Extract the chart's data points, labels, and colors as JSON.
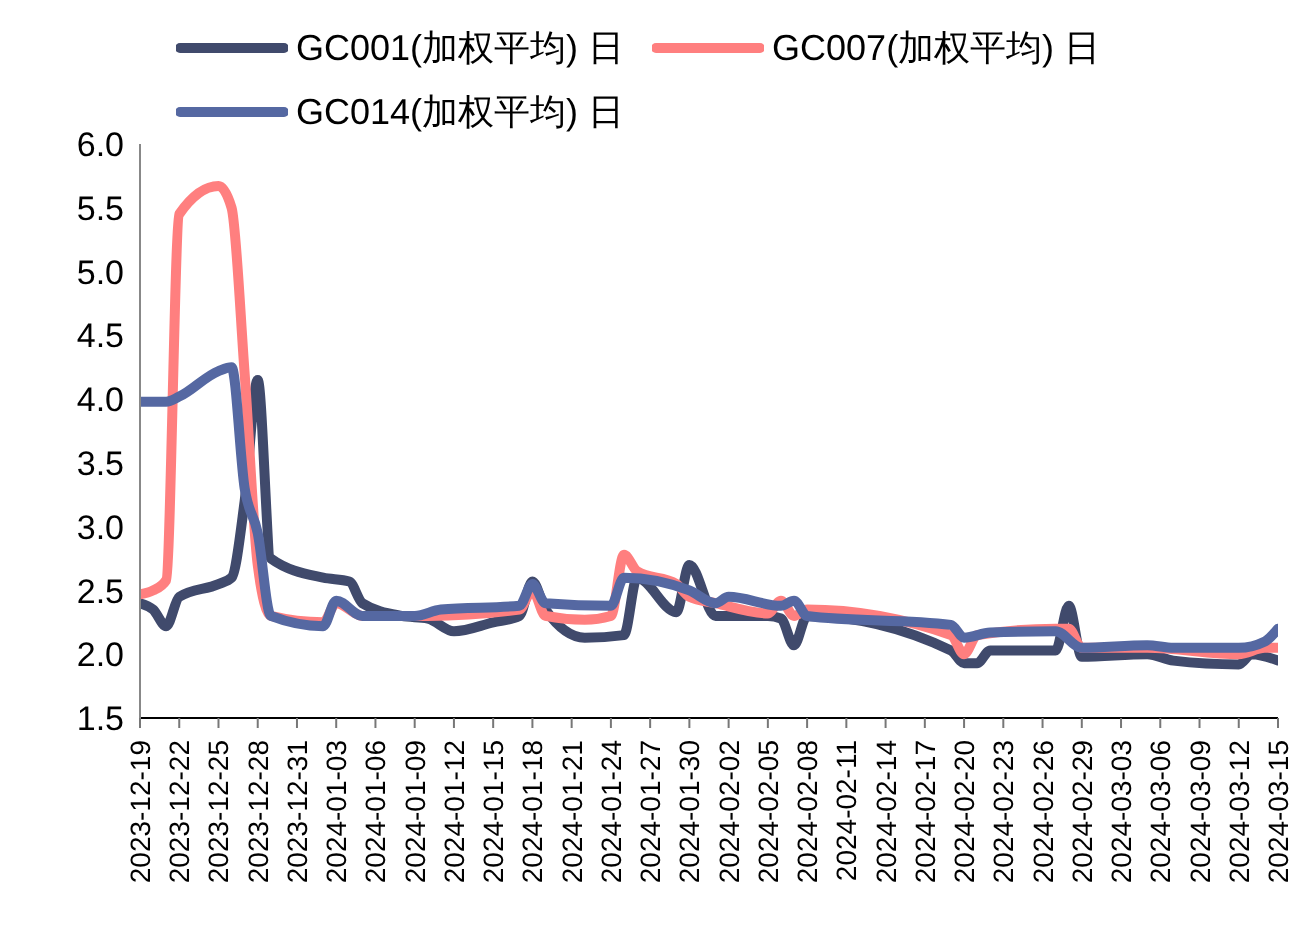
{
  "chart_data": {
    "type": "line",
    "legend": "top",
    "grid": false,
    "marker": "none",
    "line_style": "solid",
    "xlim": [
      "2023-12-19",
      "2024-03-15"
    ],
    "xticks": [
      "2023-12-19",
      "2023-12-22",
      "2023-12-25",
      "2023-12-28",
      "2023-12-31",
      "2024-01-03",
      "2024-01-06",
      "2024-01-09",
      "2024-01-12",
      "2024-01-15",
      "2024-01-18",
      "2024-01-21",
      "2024-01-24",
      "2024-01-27",
      "2024-01-30",
      "2024-02-02",
      "2024-02-05",
      "2024-02-08",
      "2024-02-11",
      "2024-02-14",
      "2024-02-17",
      "2024-02-20",
      "2024-02-23",
      "2024-02-26",
      "2024-02-29",
      "2024-03-03",
      "2024-03-06",
      "2024-03-09",
      "2024-03-12",
      "2024-03-15"
    ],
    "ylim": [
      1.5,
      6.0
    ],
    "yticks": [
      {
        "value": 1.5,
        "label": "1.5"
      },
      {
        "value": 2,
        "label": "2.0"
      },
      {
        "value": 2.5,
        "label": "2.5"
      },
      {
        "value": 3,
        "label": "3.0"
      },
      {
        "value": 3.5,
        "label": "3.5"
      },
      {
        "value": 4,
        "label": "4.0"
      },
      {
        "value": 4.5,
        "label": "4.5"
      },
      {
        "value": 5,
        "label": "5.0"
      },
      {
        "value": 5.5,
        "label": "5.5"
      },
      {
        "value": 6,
        "label": "6.0"
      }
    ],
    "series": [
      {
        "name": "GC001(加权平均) 日",
        "color": "#404a6c",
        "x": [
          "2023-12-19",
          "2023-12-20",
          "2023-12-21",
          "2023-12-22",
          "2023-12-25",
          "2023-12-26",
          "2023-12-27",
          "2023-12-28",
          "2023-12-29",
          "2024-01-02",
          "2024-01-04",
          "2024-01-05",
          "2024-01-08",
          "2024-01-10",
          "2024-01-12",
          "2024-01-15",
          "2024-01-17",
          "2024-01-18",
          "2024-01-19",
          "2024-01-22",
          "2024-01-25",
          "2024-01-26",
          "2024-01-29",
          "2024-01-30",
          "2024-02-01",
          "2024-02-05",
          "2024-02-06",
          "2024-02-07",
          "2024-02-08",
          "2024-02-19",
          "2024-02-20",
          "2024-02-21",
          "2024-02-22",
          "2024-02-27",
          "2024-02-28",
          "2024-02-29",
          "2024-03-05",
          "2024-03-07",
          "2024-03-12",
          "2024-03-13",
          "2024-03-15"
        ],
        "values": [
          2.4,
          2.35,
          2.22,
          2.45,
          2.55,
          2.6,
          3.2,
          4.15,
          2.75,
          2.6,
          2.57,
          2.4,
          2.3,
          2.28,
          2.18,
          2.25,
          2.3,
          2.57,
          2.35,
          2.13,
          2.15,
          2.6,
          2.33,
          2.7,
          2.3,
          2.3,
          2.28,
          2.07,
          2.3,
          2.03,
          1.93,
          1.93,
          2.03,
          2.03,
          2.38,
          1.98,
          2.0,
          1.95,
          1.92,
          2.0,
          1.95
        ]
      },
      {
        "name": "GC007(加权平均) 日",
        "color": "#ff7f7f",
        "x": [
          "2023-12-19",
          "2023-12-20",
          "2023-12-21",
          "2023-12-22",
          "2023-12-25",
          "2023-12-26",
          "2023-12-27",
          "2023-12-28",
          "2023-12-29",
          "2024-01-02",
          "2024-01-03",
          "2024-01-05",
          "2024-01-10",
          "2024-01-17",
          "2024-01-18",
          "2024-01-19",
          "2024-01-22",
          "2024-01-24",
          "2024-01-25",
          "2024-01-26",
          "2024-01-29",
          "2024-01-30",
          "2024-02-01",
          "2024-02-05",
          "2024-02-06",
          "2024-02-07",
          "2024-02-08",
          "2024-02-19",
          "2024-02-20",
          "2024-02-21",
          "2024-02-27",
          "2024-02-28",
          "2024-02-29",
          "2024-03-05",
          "2024-03-12",
          "2024-03-14",
          "2024-03-15"
        ],
        "values": [
          2.47,
          2.5,
          2.58,
          5.45,
          5.67,
          5.5,
          4.2,
          2.7,
          2.3,
          2.25,
          2.4,
          2.3,
          2.3,
          2.35,
          2.5,
          2.3,
          2.27,
          2.3,
          2.78,
          2.65,
          2.55,
          2.45,
          2.4,
          2.32,
          2.42,
          2.3,
          2.35,
          2.15,
          2.0,
          2.15,
          2.2,
          2.2,
          2.05,
          2.05,
          2.0,
          2.05,
          2.05
        ]
      },
      {
        "name": "GC014(加权平均) 日",
        "color": "#5568a2",
        "x": [
          "2023-12-19",
          "2023-12-21",
          "2023-12-22",
          "2023-12-25",
          "2023-12-26",
          "2023-12-27",
          "2023-12-28",
          "2023-12-29",
          "2024-01-02",
          "2024-01-03",
          "2024-01-05",
          "2024-01-09",
          "2024-01-11",
          "2024-01-17",
          "2024-01-18",
          "2024-01-19",
          "2024-01-24",
          "2024-01-25",
          "2024-01-30",
          "2024-02-01",
          "2024-02-02",
          "2024-02-06",
          "2024-02-07",
          "2024-02-08",
          "2024-02-19",
          "2024-02-20",
          "2024-02-22",
          "2024-02-27",
          "2024-02-29",
          "2024-03-05",
          "2024-03-07",
          "2024-03-12",
          "2024-03-14",
          "2024-03-15"
        ],
        "values": [
          3.98,
          3.98,
          4.02,
          4.22,
          4.25,
          3.3,
          2.95,
          2.3,
          2.22,
          2.42,
          2.3,
          2.3,
          2.35,
          2.38,
          2.55,
          2.4,
          2.38,
          2.6,
          2.5,
          2.4,
          2.45,
          2.38,
          2.42,
          2.3,
          2.23,
          2.13,
          2.17,
          2.18,
          2.05,
          2.07,
          2.05,
          2.05,
          2.1,
          2.2
        ]
      }
    ]
  }
}
